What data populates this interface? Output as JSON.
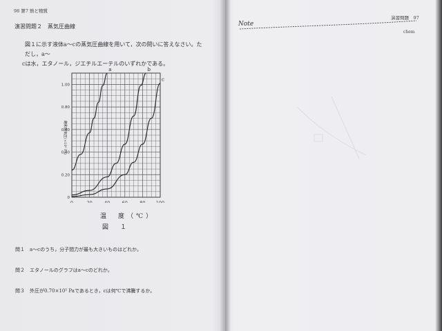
{
  "left_page": {
    "header": "98 第7 熱と物質",
    "section_title": "演習問題２　蒸気圧曲線",
    "intro_lines": [
      "図１に示す液体a～cの蒸気圧曲線を用いて，次の問いに答えなさい。ただし，a～",
      "cは水，エタノール，ジエチルエーテルのいずれかである。"
    ],
    "figure_label": "図　１",
    "questions": [
      "問１　a～cのうち，分子間力が最も大きいものはどれか。",
      "問２　エタノールのグラフはa～cのどれか。",
      "問３　外圧が0.70×10⁵ Paであるとき，cは何℃で沸騰するか。"
    ]
  },
  "right_page": {
    "header": "演習問題　97",
    "note_title": "Note",
    "chem_label": "chem"
  },
  "chart_data": {
    "type": "line",
    "xlabel": "温　度（℃）",
    "ylabel": "飽和蒸気圧(×10⁵ Pa)",
    "xlim": [
      0,
      100
    ],
    "ylim": [
      0,
      1.1
    ],
    "x_ticks": [
      "0",
      "20",
      "40",
      "60",
      "80",
      "100"
    ],
    "y_ticks": [
      "0",
      "0.20",
      "0.40",
      "0.60",
      "0.80",
      "1.00"
    ],
    "grid": true,
    "series": [
      {
        "name": "a",
        "x": [
          0,
          10,
          20,
          25,
          30,
          35,
          40
        ],
        "y": [
          0.24,
          0.38,
          0.57,
          0.7,
          0.84,
          0.99,
          1.1
        ]
      },
      {
        "name": "b",
        "x": [
          0,
          20,
          40,
          50,
          60,
          70,
          78,
          84
        ],
        "y": [
          0.02,
          0.06,
          0.18,
          0.3,
          0.47,
          0.72,
          0.99,
          1.1
        ]
      },
      {
        "name": "c",
        "x": [
          0,
          20,
          40,
          60,
          70,
          80,
          90,
          100
        ],
        "y": [
          0.006,
          0.023,
          0.074,
          0.2,
          0.31,
          0.47,
          0.7,
          1.01
        ]
      }
    ]
  }
}
